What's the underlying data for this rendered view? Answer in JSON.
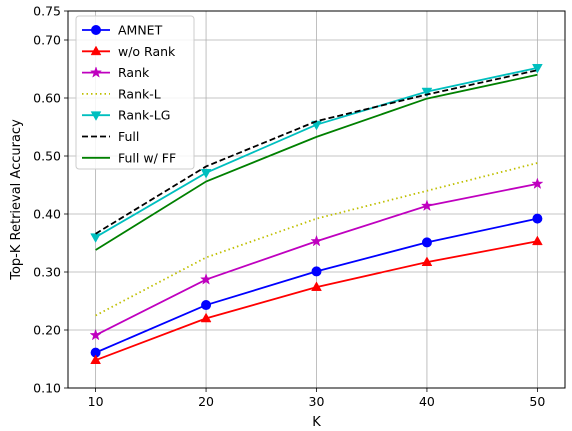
{
  "chart_data": {
    "type": "line",
    "xlabel": "K",
    "ylabel": "Top-K Retrieval Accuracy",
    "x": [
      10,
      20,
      30,
      40,
      50
    ],
    "xlim": [
      7.5,
      52.5
    ],
    "ylim": [
      0.1,
      0.75
    ],
    "xticks": [
      "10",
      "20",
      "30",
      "40",
      "50"
    ],
    "yticks": [
      {
        "v": 0.1,
        "label": "0.10"
      },
      {
        "v": 0.2,
        "label": "0.20"
      },
      {
        "v": 0.3,
        "label": "0.30"
      },
      {
        "v": 0.4,
        "label": "0.40"
      },
      {
        "v": 0.5,
        "label": "0.50"
      },
      {
        "v": 0.6,
        "label": "0.60"
      },
      {
        "v": 0.7,
        "label": "0.70"
      },
      {
        "v": 0.75,
        "label": "0.75"
      }
    ],
    "grid": true,
    "legend_position": "top-left",
    "series": [
      {
        "name": "AMNET",
        "color": "#0000ff",
        "dash": "solid",
        "marker": "circle",
        "values": [
          0.161,
          0.243,
          0.301,
          0.351,
          0.392
        ]
      },
      {
        "name": "w/o Rank",
        "color": "#ff0000",
        "dash": "solid",
        "marker": "triangle-up",
        "values": [
          0.148,
          0.22,
          0.274,
          0.317,
          0.353
        ]
      },
      {
        "name": "Rank",
        "color": "#bf00bf",
        "dash": "solid",
        "marker": "star",
        "values": [
          0.191,
          0.287,
          0.353,
          0.414,
          0.452
        ]
      },
      {
        "name": "Rank-L",
        "color": "#bfbf00",
        "dash": "dotted",
        "marker": "none",
        "values": [
          0.225,
          0.325,
          0.392,
          0.44,
          0.488
        ]
      },
      {
        "name": "Rank-LG",
        "color": "#00bfbf",
        "dash": "solid",
        "marker": "triangle-down",
        "values": [
          0.36,
          0.471,
          0.554,
          0.611,
          0.652
        ]
      },
      {
        "name": "Full",
        "color": "#000000",
        "dash": "dashed",
        "marker": "none",
        "values": [
          0.366,
          0.482,
          0.56,
          0.606,
          0.648
        ]
      },
      {
        "name": "Full w/ FF",
        "color": "#008000",
        "dash": "solid",
        "marker": "none",
        "values": [
          0.338,
          0.456,
          0.533,
          0.599,
          0.64
        ]
      }
    ]
  }
}
